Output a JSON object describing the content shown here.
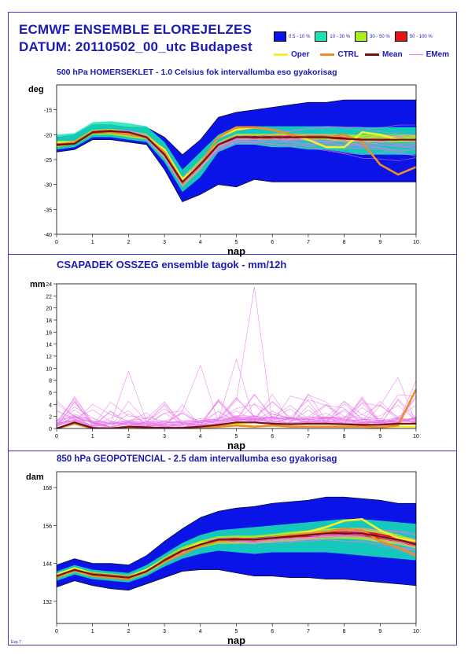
{
  "header": {
    "title_line1": "ECMWF ENSEMBLE ELOREJELZES",
    "title_line2": "DATUM: 20110502_00_utc  Budapest",
    "footer": "Exp 7"
  },
  "legend": {
    "bands": [
      {
        "label": "0.5 - 10 %",
        "color": "#0a14e6"
      },
      {
        "label": "10 - 30 %",
        "color": "#19e6b4"
      },
      {
        "label": "30 - 50 %",
        "color": "#aaf01e"
      },
      {
        "label": "50 - 100 %",
        "color": "#e61414"
      }
    ],
    "lines": [
      {
        "label": "Oper",
        "color": "#f5f028"
      },
      {
        "label": "CTRL",
        "color": "#f08c28"
      },
      {
        "label": "Mean",
        "color": "#6e1414"
      },
      {
        "label": "EMem",
        "color": "#e678e6"
      }
    ]
  },
  "chart_data": [
    {
      "type": "area",
      "title": "500 hPa HOMERSEKLET - 1.0 Celsius fok intervallumba eso gyakorisag",
      "ylabel": "deg",
      "xlabel": "nap",
      "xlim": [
        0,
        10
      ],
      "ylim": [
        -40,
        -10
      ],
      "yticks": [
        -15,
        -20,
        -25,
        -30,
        -35,
        -40
      ],
      "xticks": [
        0,
        1,
        2,
        3,
        4,
        5,
        6,
        7,
        8,
        9,
        10
      ],
      "x": [
        0,
        0.5,
        1,
        1.5,
        2,
        2.5,
        3,
        3.5,
        4,
        4.5,
        5,
        5.5,
        6,
        6.5,
        7,
        7.5,
        8,
        8.5,
        9,
        9.5,
        10
      ],
      "series": [
        {
          "name": "Oper",
          "values": [
            -21.5,
            -21.5,
            -19.5,
            -19.5,
            -20,
            -20.5,
            -23,
            -29,
            -26,
            -20.5,
            -19,
            -18.5,
            -19,
            -20,
            -21,
            -22.5,
            -22.5,
            -19.5,
            -20,
            -21,
            -21
          ]
        },
        {
          "name": "CTRL",
          "values": [
            -22,
            -21.5,
            -19.5,
            -19.5,
            -20,
            -20.5,
            -23.5,
            -29.5,
            -26,
            -20.5,
            -18.5,
            -18.5,
            -19,
            -20,
            -20.5,
            -20.5,
            -20,
            -21.5,
            -26,
            -28,
            -26.5
          ]
        },
        {
          "name": "Mean",
          "values": [
            -22,
            -21.8,
            -19.5,
            -19.3,
            -19.5,
            -20.5,
            -24,
            -29.5,
            -26,
            -22,
            -20.5,
            -20.5,
            -20.5,
            -20.5,
            -20.5,
            -20.5,
            -20.8,
            -21,
            -21,
            -21,
            -21
          ]
        }
      ],
      "bands": [
        {
          "name": "0.5 - 10 %",
          "low": [
            -23.5,
            -23,
            -21,
            -21,
            -21.5,
            -22,
            -27,
            -33.5,
            -32,
            -30,
            -30.5,
            -29,
            -29.5,
            -29.5,
            -29.5,
            -29.5,
            -29.5,
            -29.5,
            -29.5,
            -29.5,
            -29.5
          ],
          "high": [
            -20.5,
            -20,
            -18,
            -18,
            -18.5,
            -18.5,
            -20.5,
            -24,
            -21,
            -16.5,
            -15.5,
            -15,
            -14.5,
            -14,
            -13.5,
            -13.5,
            -13,
            -13,
            -13,
            -13,
            -13
          ]
        },
        {
          "name": "10 - 30 %",
          "low": [
            -23,
            -22.5,
            -20.5,
            -20.5,
            -21,
            -21.5,
            -25.5,
            -31.5,
            -28.5,
            -23.5,
            -22,
            -22,
            -22.5,
            -22.5,
            -23,
            -23,
            -23.5,
            -24,
            -24,
            -24,
            -24
          ]
        },
        {
          "name": "30 - 50 %",
          "low": [
            -22.5,
            -22,
            -20,
            -20,
            -20.5,
            -21,
            -24.8,
            -30.5,
            -27,
            -22.5,
            -21,
            -21,
            -21,
            -21,
            -21,
            -21,
            -21.5,
            -21.5,
            -21.5,
            -21.5,
            -21.5
          ],
          "high": [
            -21.5,
            -21.2,
            -19,
            -18.8,
            -19.2,
            -19.8,
            -23,
            -28.5,
            -25,
            -21.5,
            -19.8,
            -19.8,
            -19.8,
            -19.8,
            -19.8,
            -19.8,
            -20,
            -20,
            -20,
            -20,
            -20
          ]
        },
        {
          "name": "50 - 100 %",
          "low": [
            -22.3,
            -22,
            -19.8,
            -19.7,
            -20,
            -20.8,
            -24.5,
            -30,
            -26.5,
            -22.3,
            -20.8,
            -20.8,
            -20.8,
            -20.8,
            -20.8,
            -20.8,
            -21,
            -21.2,
            -21.2,
            -21.2,
            -21.2
          ],
          "high": [
            -21.7,
            -21.5,
            -19.2,
            -19,
            -19.3,
            -20.2,
            -23.5,
            -29,
            -25.5,
            -21.7,
            -20.2,
            -20.2,
            -20.2,
            -20.2,
            -20.2,
            -20.2,
            -20.5,
            -20.8,
            -20.8,
            -20.8,
            -20.8
          ]
        }
      ]
    },
    {
      "type": "line",
      "title": "CSAPADEK OSSZEG ensemble tagok - mm/12h",
      "ylabel": "mm",
      "xlabel": "nap",
      "xlim": [
        0,
        10
      ],
      "ylim": [
        0,
        24
      ],
      "yticks": [
        0,
        2,
        4,
        6,
        8,
        10,
        12,
        14,
        16,
        18,
        20,
        22,
        24
      ],
      "xticks": [
        0,
        1,
        2,
        3,
        4,
        5,
        6,
        7,
        8,
        9,
        10
      ],
      "x": [
        0,
        0.5,
        1,
        1.5,
        2,
        2.5,
        3,
        3.5,
        4,
        4.5,
        5,
        5.5,
        6,
        6.5,
        7,
        7.5,
        8,
        8.5,
        9,
        9.5,
        10
      ],
      "series": [
        {
          "name": "Oper",
          "values": [
            0,
            0.8,
            0,
            0,
            0.3,
            0,
            0,
            0,
            0.2,
            0.3,
            0.8,
            0.3,
            0.5,
            0.3,
            0.3,
            0.3,
            0.3,
            0.3,
            0.2,
            0.3,
            0.3
          ]
        },
        {
          "name": "CTRL",
          "values": [
            0,
            0.8,
            0,
            0,
            0.2,
            0,
            0,
            0,
            0.2,
            0.3,
            0.5,
            0.3,
            0.5,
            0.3,
            0.3,
            0.3,
            0.3,
            0.3,
            0.2,
            0.5,
            6.5
          ]
        },
        {
          "name": "Mean",
          "values": [
            0,
            1.0,
            0.1,
            0,
            0.3,
            0.2,
            0.1,
            0.1,
            0.3,
            0.6,
            1.0,
            1.0,
            0.8,
            0.7,
            0.8,
            0.8,
            0.7,
            0.6,
            0.6,
            0.8,
            0.8
          ]
        }
      ],
      "members_peaks": [
        {
          "x": 5.5,
          "value": 23.5
        },
        {
          "x": 2,
          "value": 9.5
        },
        {
          "x": 4,
          "value": 10.5
        },
        {
          "x": 5,
          "value": 11.5
        },
        {
          "x": 9.5,
          "value": 8.5
        },
        {
          "x": 10,
          "value": 8
        }
      ]
    },
    {
      "type": "area",
      "title": "850 hPa GEOPOTENCIAL - 2.5 dam intervallumba eso gyakorisag",
      "ylabel": "dam",
      "xlabel": "nap",
      "xlim": [
        0,
        10
      ],
      "ylim": [
        125,
        173
      ],
      "yticks": [
        132,
        144,
        156,
        168
      ],
      "xticks": [
        0,
        1,
        2,
        3,
        4,
        5,
        6,
        7,
        8,
        9,
        10
      ],
      "x": [
        0,
        0.5,
        1,
        1.5,
        2,
        2.5,
        3,
        3.5,
        4,
        4.5,
        5,
        5.5,
        6,
        6.5,
        7,
        7.5,
        8,
        8.5,
        9,
        9.5,
        10
      ],
      "series": [
        {
          "name": "Oper",
          "values": [
            140.5,
            142.5,
            140.5,
            140,
            139.5,
            142,
            145,
            148,
            150.5,
            151,
            151.5,
            151.5,
            152,
            153,
            154,
            155.5,
            157.5,
            158,
            154.5,
            152,
            151
          ]
        },
        {
          "name": "CTRL",
          "values": [
            139.5,
            142,
            140,
            139.5,
            139,
            141.5,
            144.5,
            147,
            149.5,
            151,
            151.5,
            151.5,
            152,
            153,
            153.5,
            154,
            155,
            154.5,
            151,
            149,
            146.5
          ]
        },
        {
          "name": "Mean",
          "values": [
            140,
            142,
            140.5,
            140,
            139.5,
            141.5,
            145,
            148,
            150,
            151.5,
            151.5,
            151.5,
            152,
            152.5,
            153,
            153.5,
            153.5,
            153.5,
            152.5,
            151.5,
            150
          ]
        }
      ],
      "bands": [
        {
          "name": "0.5 - 10 %",
          "low": [
            136.5,
            138.5,
            137,
            136,
            135.5,
            137.5,
            139.5,
            141.5,
            142,
            142,
            141,
            140,
            140,
            139.5,
            139.5,
            139,
            139,
            138.5,
            138,
            137.5,
            137
          ],
          "high": [
            143.5,
            145.5,
            144,
            144,
            143.5,
            146.5,
            151,
            155,
            158.5,
            160.5,
            161.5,
            162,
            163,
            163.5,
            164,
            165,
            165,
            164.5,
            164,
            163,
            163
          ]
        },
        {
          "name": "10 - 30 %",
          "low": [
            138.5,
            140.5,
            139,
            138.5,
            138,
            140,
            143,
            145.5,
            147,
            148,
            147.5,
            147,
            147.5,
            147.5,
            147.5,
            147.5,
            147,
            146.5,
            146,
            145.5,
            145
          ],
          "high": [
            141.5,
            143.5,
            142,
            141.5,
            141,
            143.5,
            147,
            150.5,
            153,
            154.5,
            155,
            155.5,
            156,
            156.5,
            157,
            157.5,
            158,
            158,
            157.5,
            157,
            156.5
          ]
        },
        {
          "name": "30 - 50 %",
          "low": [
            139.2,
            141.2,
            139.7,
            139.2,
            138.7,
            140.7,
            144,
            147,
            149,
            150.2,
            150.2,
            150.2,
            150.7,
            151,
            151.5,
            151.8,
            151.8,
            151.5,
            150.7,
            150,
            148.7
          ],
          "high": [
            140.8,
            142.8,
            141.3,
            140.8,
            140.3,
            142.3,
            146,
            149.2,
            151.2,
            152.6,
            152.8,
            152.8,
            153.3,
            154,
            154.5,
            155,
            155.2,
            155.3,
            154.5,
            153.2,
            151.5
          ]
        },
        {
          "name": "50 - 100 %",
          "low": [
            139.5,
            141.5,
            140,
            139.5,
            139,
            141,
            144.5,
            147.5,
            149.5,
            150.8,
            150.9,
            150.9,
            151.4,
            151.8,
            152.3,
            152.6,
            152.7,
            152.6,
            151.7,
            150.8,
            149.3
          ],
          "high": [
            140.5,
            142.5,
            141,
            140.5,
            140,
            142,
            145.5,
            148.5,
            150.5,
            152,
            152.1,
            152.1,
            152.6,
            153.2,
            153.7,
            154.2,
            154.3,
            154.4,
            153.4,
            152.3,
            150.8
          ]
        }
      ]
    }
  ]
}
